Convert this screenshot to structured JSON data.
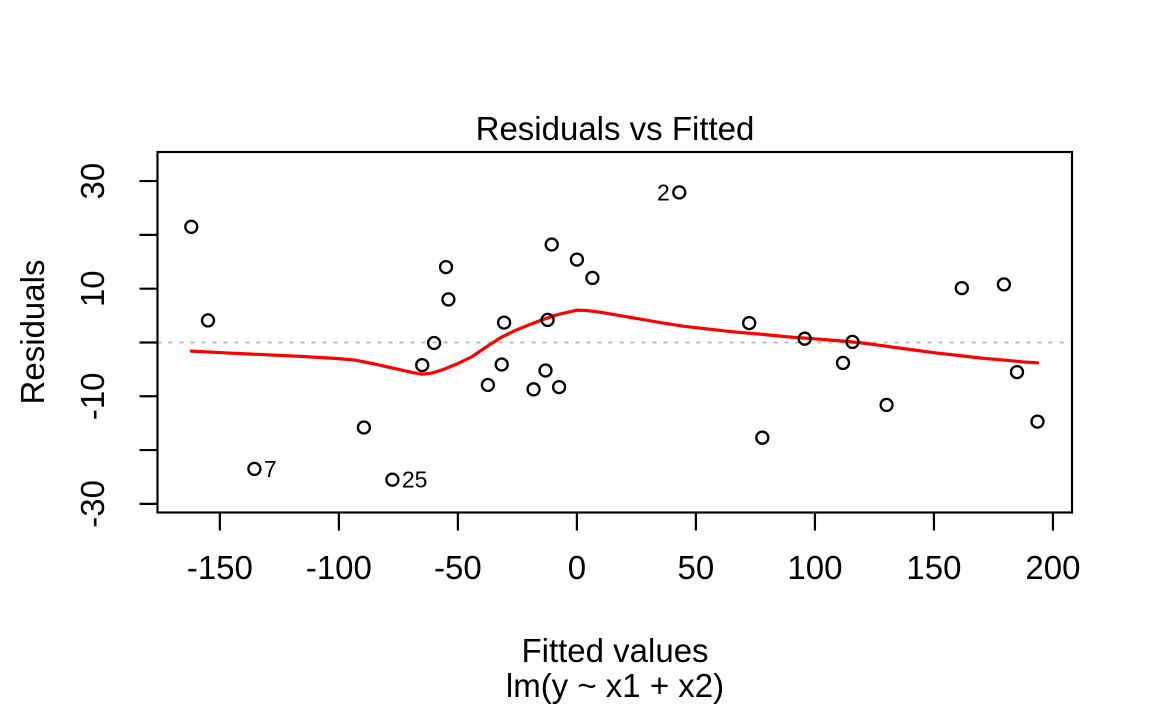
{
  "chart_data": {
    "type": "scatter",
    "title": "Residuals vs Fitted",
    "xlabel": "Fitted values",
    "xlabel_sub": "lm(y ~ x1 + x2)",
    "ylabel": "Residuals",
    "xlim": [
      -176.2,
      208.0
    ],
    "ylim": [
      -31.6,
      35.4
    ],
    "grid": "off",
    "legend": "none",
    "x_ticks": [
      {
        "v": -150,
        "label": "-150"
      },
      {
        "v": -100,
        "label": "-100"
      },
      {
        "v": -50,
        "label": "-50"
      },
      {
        "v": 0,
        "label": "0"
      },
      {
        "v": 50,
        "label": "50"
      },
      {
        "v": 100,
        "label": "100"
      },
      {
        "v": 150,
        "label": "150"
      },
      {
        "v": 200,
        "label": "200"
      }
    ],
    "y_ticks": [
      {
        "v": -30,
        "label": "-30"
      },
      {
        "v": -20,
        "label": ""
      },
      {
        "v": -10,
        "label": "-10"
      },
      {
        "v": 0,
        "label": ""
      },
      {
        "v": 10,
        "label": "10"
      },
      {
        "v": 20,
        "label": ""
      },
      {
        "v": 30,
        "label": "30"
      }
    ],
    "reference_line_y": 0,
    "points": [
      {
        "x": -162.0,
        "y": 21.5
      },
      {
        "x": -155.0,
        "y": 4.1
      },
      {
        "x": -135.5,
        "y": -23.5,
        "label": "7",
        "side": "right"
      },
      {
        "x": -89.5,
        "y": -15.8
      },
      {
        "x": -77.5,
        "y": -25.5,
        "label": "25",
        "side": "right"
      },
      {
        "x": -65.0,
        "y": -4.2
      },
      {
        "x": -60.0,
        "y": -0.1
      },
      {
        "x": -55.0,
        "y": 14.0
      },
      {
        "x": -54.0,
        "y": 8.0
      },
      {
        "x": -37.4,
        "y": -7.9
      },
      {
        "x": -31.6,
        "y": -4.1
      },
      {
        "x": -30.6,
        "y": 3.7
      },
      {
        "x": -18.2,
        "y": -8.7
      },
      {
        "x": -13.2,
        "y": -5.2
      },
      {
        "x": -12.3,
        "y": 4.2
      },
      {
        "x": -10.6,
        "y": 18.2
      },
      {
        "x": -7.5,
        "y": -8.3
      },
      {
        "x": 0.0,
        "y": 15.4
      },
      {
        "x": 6.5,
        "y": 12.0
      },
      {
        "x": 43.0,
        "y": 27.9,
        "label": "2",
        "side": "left"
      },
      {
        "x": 72.4,
        "y": 3.6
      },
      {
        "x": 77.9,
        "y": -17.7
      },
      {
        "x": 95.7,
        "y": 0.7
      },
      {
        "x": 111.8,
        "y": -3.8
      },
      {
        "x": 115.8,
        "y": 0.1
      },
      {
        "x": 130.1,
        "y": -11.6
      },
      {
        "x": 161.7,
        "y": 10.1
      },
      {
        "x": 179.4,
        "y": 10.8
      },
      {
        "x": 184.9,
        "y": -5.5
      },
      {
        "x": 193.5,
        "y": -14.7
      }
    ],
    "smooth_line": [
      [
        -162,
        -1.6
      ],
      [
        -145,
        -2.0
      ],
      [
        -130,
        -2.3
      ],
      [
        -115,
        -2.6
      ],
      [
        -100,
        -3.0
      ],
      [
        -93,
        -3.3
      ],
      [
        -85,
        -4.0
      ],
      [
        -76,
        -4.9
      ],
      [
        -69,
        -5.6
      ],
      [
        -65,
        -5.9
      ],
      [
        -61,
        -5.7
      ],
      [
        -56,
        -5.0
      ],
      [
        -50,
        -3.9
      ],
      [
        -44,
        -2.6
      ],
      [
        -38,
        -0.8
      ],
      [
        -32,
        0.9
      ],
      [
        -26,
        2.2
      ],
      [
        -20,
        3.3
      ],
      [
        -14,
        4.3
      ],
      [
        -8,
        5.2
      ],
      [
        -3,
        5.7
      ],
      [
        0,
        6.0
      ],
      [
        4,
        5.95
      ],
      [
        10,
        5.6
      ],
      [
        18,
        5.0
      ],
      [
        26,
        4.4
      ],
      [
        35,
        3.7
      ],
      [
        45,
        3.0
      ],
      [
        55,
        2.5
      ],
      [
        65,
        2.0
      ],
      [
        78,
        1.5
      ],
      [
        90,
        1.0
      ],
      [
        102,
        0.6
      ],
      [
        112,
        0.25
      ],
      [
        120,
        -0.1
      ],
      [
        130,
        -0.7
      ],
      [
        140,
        -1.3
      ],
      [
        150,
        -1.9
      ],
      [
        160,
        -2.4
      ],
      [
        170,
        -2.9
      ],
      [
        180,
        -3.3
      ],
      [
        187,
        -3.6
      ],
      [
        193.5,
        -3.8
      ]
    ],
    "colors": {
      "background": "#FFFFFF",
      "points": "#000000",
      "smooth_line": "#FF0000",
      "reference_line": "#B3B3B3",
      "axis": "#000000",
      "text": "#000000"
    }
  }
}
